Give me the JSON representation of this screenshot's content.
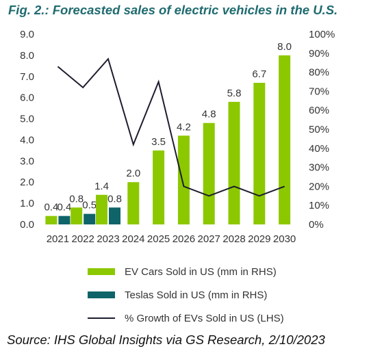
{
  "title": "Fig. 2.: Forecasted sales of electric vehicles in the U.S.",
  "source": "Source: IHS Global Insights via GS Research, 2/10/2023",
  "chart_data": {
    "type": "bar",
    "categories": [
      "2021",
      "2022",
      "2023",
      "2024",
      "2025",
      "2026",
      "2027",
      "2028",
      "2029",
      "2030"
    ],
    "y_left_ticks": [
      "9.0",
      "8.0",
      "7.0",
      "6.0",
      "5.0",
      "4.0",
      "3.0",
      "2.0",
      "1.0",
      "0.0"
    ],
    "y_right_ticks": [
      "100%",
      "90%",
      "80%",
      "70%",
      "60%",
      "50%",
      "40%",
      "30%",
      "20%",
      "10%",
      "0%"
    ],
    "ylim_left": [
      0,
      9
    ],
    "ylim_right": [
      0,
      1
    ],
    "grid": false,
    "legend_position": "bottom",
    "series": [
      {
        "name": "EV Cars Sold in US (mm in RHS)",
        "type": "bar",
        "axis": "left",
        "color": "#8cc800",
        "values": [
          0.4,
          0.8,
          1.4,
          2.0,
          3.5,
          4.2,
          4.8,
          5.8,
          6.7,
          8.0
        ],
        "labels": [
          "0.4",
          "0.8",
          "1.4",
          "2.0",
          "3.5",
          "4.2",
          "4.8",
          "5.8",
          "6.7",
          "8.0"
        ]
      },
      {
        "name": "Teslas Sold in US (mm in RHS)",
        "type": "bar",
        "axis": "left",
        "color": "#0e6468",
        "values": [
          0.4,
          0.5,
          0.8,
          null,
          null,
          null,
          null,
          null,
          null,
          null
        ],
        "labels": [
          "0.4",
          "0.5",
          "0.8",
          null,
          null,
          null,
          null,
          null,
          null,
          null
        ]
      },
      {
        "name": "% Growth of EVs Sold in US (LHS)",
        "type": "line",
        "axis": "right",
        "color": "#1c1c2e",
        "values": [
          0.83,
          0.72,
          0.87,
          0.42,
          0.75,
          0.2,
          0.15,
          0.2,
          0.15,
          0.2
        ]
      }
    ]
  }
}
